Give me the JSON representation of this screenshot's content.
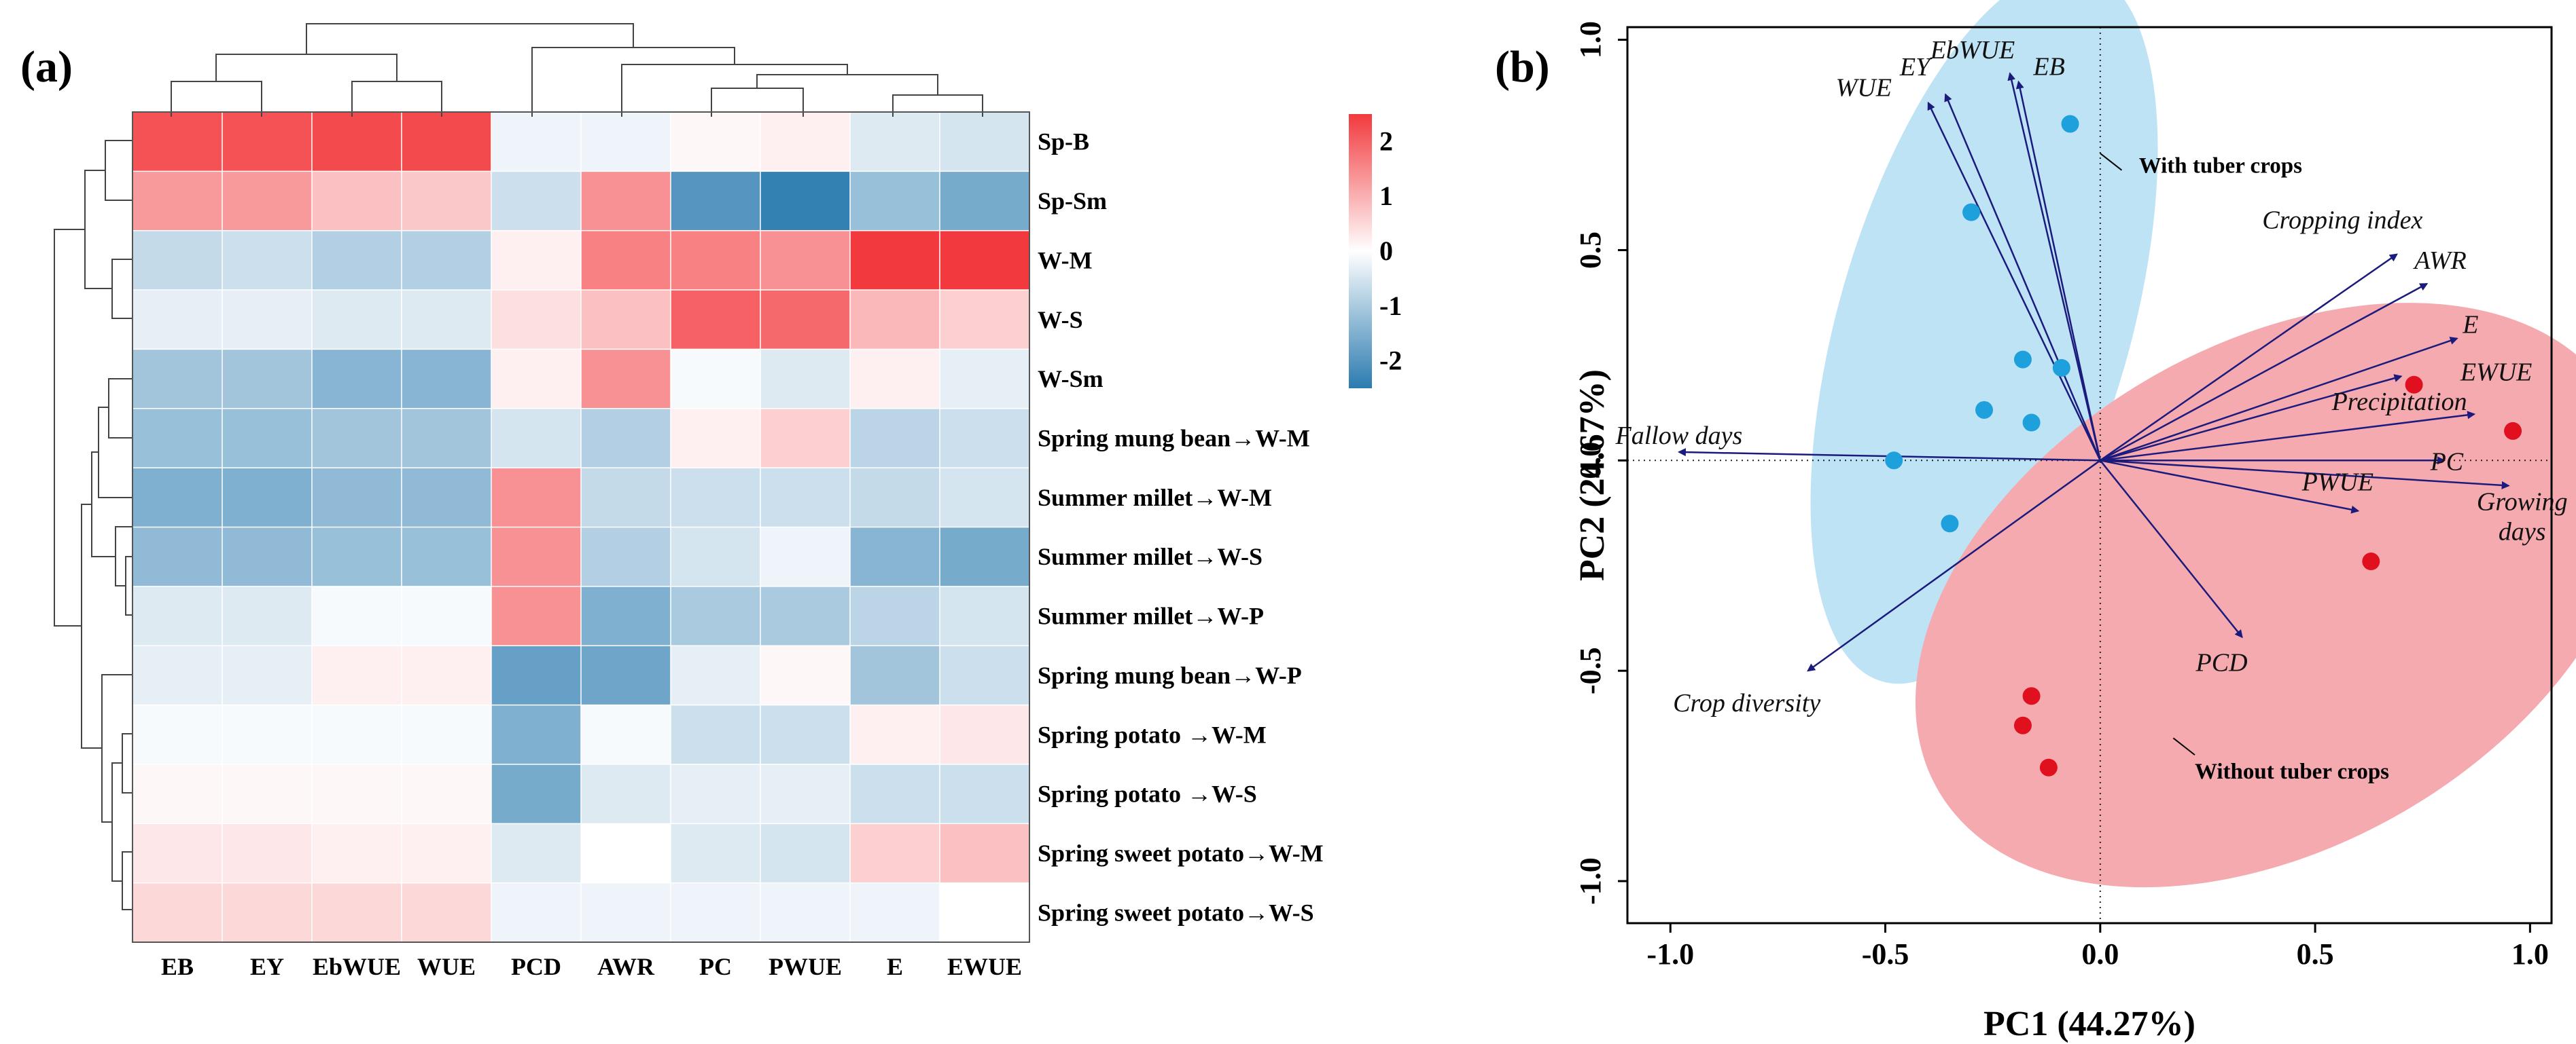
{
  "chart_data": [
    {
      "type": "heatmap",
      "panel_label": "(a)",
      "columns": [
        "EB",
        "EY",
        "EbWUE",
        "WUE",
        "PCD",
        "AWR",
        "PC",
        "PWUE",
        "E",
        "EWUE"
      ],
      "rows": [
        "Sp-B",
        "Sp-Sm",
        "W-M",
        "W-S",
        "W-Sm",
        "Spring mung bean→W-M",
        "Summer millet→W-M",
        "Summer millet→W-S",
        "Summer millet→W-P",
        "Spring mung bean→W-P",
        "Spring potato →W-M",
        "Spring potato →W-S",
        "Spring sweet potato→W-M",
        "Spring sweet potato→W-S"
      ],
      "values": [
        [
          2.2,
          2.2,
          2.3,
          2.3,
          -0.2,
          -0.2,
          0.1,
          0.2,
          -0.4,
          -0.5
        ],
        [
          1.3,
          1.3,
          0.8,
          0.7,
          -0.6,
          1.4,
          -2.0,
          -2.4,
          -1.2,
          -1.6
        ],
        [
          -0.7,
          -0.6,
          -0.9,
          -0.9,
          0.2,
          1.6,
          1.6,
          1.4,
          2.5,
          2.5
        ],
        [
          -0.3,
          -0.3,
          -0.4,
          -0.4,
          0.4,
          0.8,
          2.0,
          1.9,
          0.9,
          0.6
        ],
        [
          -1.1,
          -1.1,
          -1.4,
          -1.4,
          0.2,
          1.4,
          -0.1,
          -0.4,
          0.2,
          -0.3
        ],
        [
          -1.2,
          -1.2,
          -1.1,
          -1.1,
          -0.5,
          -0.9,
          0.2,
          0.6,
          -0.8,
          -0.6
        ],
        [
          -1.5,
          -1.5,
          -1.3,
          -1.3,
          1.4,
          -0.7,
          -0.6,
          -0.6,
          -0.7,
          -0.5
        ],
        [
          -1.3,
          -1.3,
          -1.2,
          -1.2,
          1.4,
          -0.9,
          -0.5,
          -0.2,
          -1.4,
          -1.6
        ],
        [
          -0.4,
          -0.4,
          -0.1,
          -0.1,
          1.4,
          -1.5,
          -1.0,
          -1.0,
          -0.8,
          -0.5
        ],
        [
          -0.3,
          -0.3,
          0.2,
          0.2,
          -1.8,
          -1.7,
          -0.3,
          0.1,
          -1.1,
          -0.6
        ],
        [
          -0.1,
          -0.1,
          -0.1,
          -0.1,
          -1.5,
          -0.1,
          -0.6,
          -0.6,
          0.2,
          0.3
        ],
        [
          0.1,
          0.1,
          0.1,
          0.1,
          -1.6,
          -0.4,
          -0.3,
          -0.3,
          -0.6,
          -0.6
        ],
        [
          0.3,
          0.3,
          0.2,
          0.2,
          -0.4,
          0.0,
          -0.4,
          -0.5,
          0.6,
          0.8
        ],
        [
          0.5,
          0.5,
          0.5,
          0.5,
          -0.2,
          -0.2,
          -0.2,
          -0.2,
          -0.2,
          0.0
        ]
      ],
      "color_range": [
        -2.5,
        2.5
      ],
      "colors": {
        "low": "#2b7bb0",
        "mid": "#ffffff",
        "high": "#f23a3e"
      },
      "legend_ticks": [
        "2",
        "1",
        "0",
        "-1",
        "-2"
      ],
      "legend_tick_values": [
        2,
        1,
        0,
        -1,
        -2
      ],
      "col_order_leaves": [
        "EB",
        "EY",
        "EbWUE",
        "WUE",
        "PCD",
        "AWR",
        "PC",
        "PWUE",
        "E",
        "EWUE"
      ]
    },
    {
      "type": "scatter",
      "panel_label": "(b)",
      "xlabel": "PC1 (44.27%)",
      "ylabel": "PC2 (24.67%)",
      "xlim": [
        -1.1,
        1.05
      ],
      "ylim": [
        -1.1,
        1.03
      ],
      "xticks": [
        -1.0,
        -0.5,
        0.0,
        0.5,
        1.0
      ],
      "xtick_labels": [
        "-1.0",
        "-0.5",
        "0.0",
        "0.5",
        "1.0"
      ],
      "yticks": [
        -1.0,
        -0.5,
        0.0,
        0.5,
        1.0
      ],
      "ytick_labels": [
        "-1.0",
        "-0.5",
        "0.0",
        "0.5",
        "1.0"
      ],
      "series": [
        {
          "name": "With tuber crops",
          "color": "#1ea0dc",
          "ellipse_color": "#bde3f5",
          "points": [
            [
              -0.07,
              0.8
            ],
            [
              -0.3,
              0.59
            ],
            [
              -0.09,
              0.22
            ],
            [
              -0.18,
              0.24
            ],
            [
              -0.27,
              0.12
            ],
            [
              -0.16,
              0.09
            ],
            [
              -0.48,
              0.0
            ],
            [
              -0.35,
              -0.15
            ]
          ]
        },
        {
          "name": "Without tuber crops",
          "color": "#e0101e",
          "ellipse_color": "#f5aab0",
          "points": [
            [
              0.73,
              0.18
            ],
            [
              0.96,
              0.07
            ],
            [
              0.63,
              -0.24
            ],
            [
              -0.16,
              -0.56
            ],
            [
              -0.18,
              -0.63
            ],
            [
              -0.12,
              -0.73
            ]
          ]
        }
      ],
      "loadings": [
        {
          "label": "EbWUE",
          "x": -0.21,
          "y": 0.92
        },
        {
          "label": "EB",
          "x": -0.19,
          "y": 0.9
        },
        {
          "label": "EY",
          "x": -0.36,
          "y": 0.87
        },
        {
          "label": "WUE",
          "x": -0.4,
          "y": 0.85
        },
        {
          "label": "Cropping index",
          "x": 0.69,
          "y": 0.49
        },
        {
          "label": "AWR",
          "x": 0.76,
          "y": 0.42
        },
        {
          "label": "E",
          "x": 0.83,
          "y": 0.29
        },
        {
          "label": "EWUE",
          "x": 0.7,
          "y": 0.2
        },
        {
          "label": "Precipitation",
          "x": 0.87,
          "y": 0.11
        },
        {
          "label": "PC",
          "x": 0.8,
          "y": 0.0
        },
        {
          "label": "Growing days",
          "x": 0.95,
          "y": -0.06
        },
        {
          "label": "PWUE",
          "x": 0.6,
          "y": -0.12
        },
        {
          "label": "PCD",
          "x": 0.33,
          "y": -0.42
        },
        {
          "label": "Crop diversity",
          "x": -0.68,
          "y": -0.5
        },
        {
          "label": "Fallow days",
          "x": -0.98,
          "y": 0.02
        }
      ],
      "annotations": [
        "With tuber crops",
        "Without tuber crops"
      ]
    }
  ]
}
